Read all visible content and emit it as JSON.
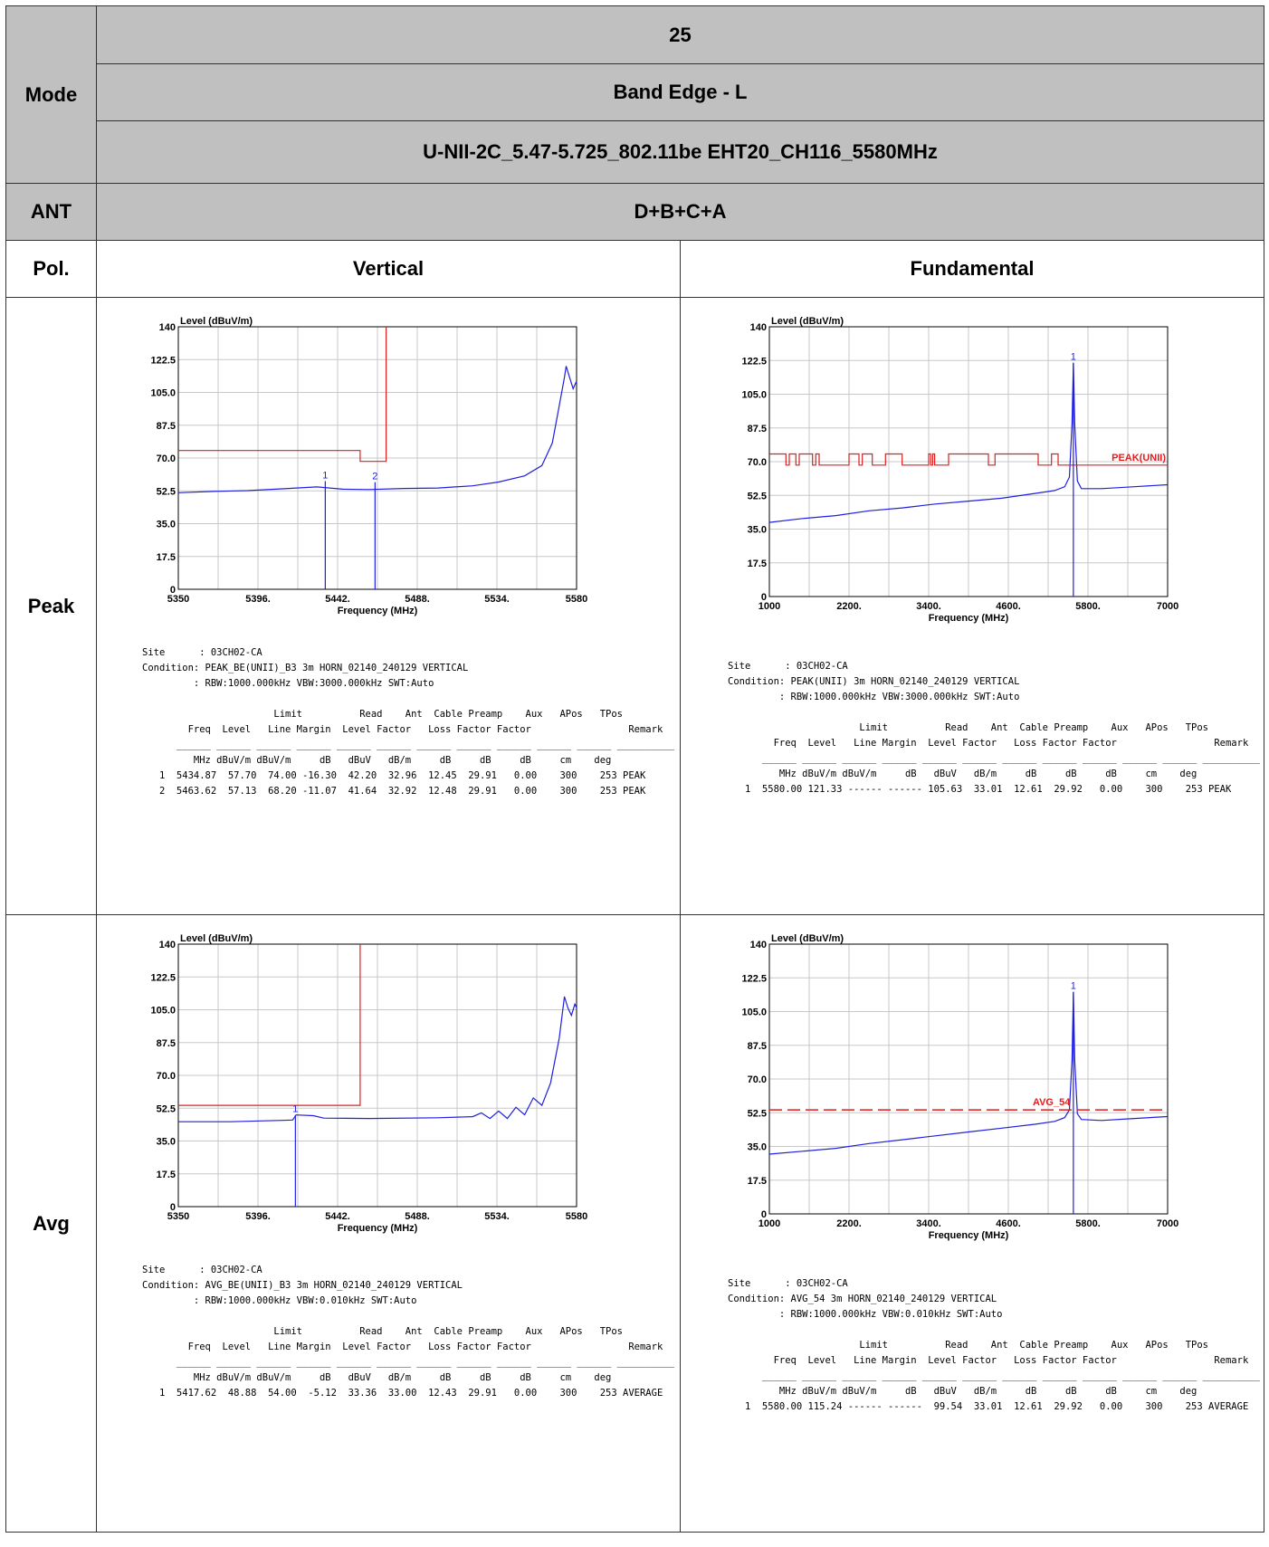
{
  "header": {
    "mode_label": "Mode",
    "row1": "25",
    "row2": "Band Edge - L",
    "row3": "U-NII-2C_5.47-5.725_802.11be EHT20_CH116_5580MHz",
    "ant_label": "ANT",
    "ant_value": "D+B+C+A",
    "pol_label": "Pol.",
    "col1": "Vertical",
    "col2": "Fundamental",
    "peak_label": "Peak",
    "avg_label": "Avg"
  },
  "colors": {
    "trace": "#1f1fe0",
    "limit": "#e01f1f",
    "grid": "#c8c8c8"
  },
  "chart_data": [
    {
      "id": "peak_band_edge",
      "type": "line",
      "ylabel": "Level (dBuV/m)",
      "xlabel": "Frequency (MHz)",
      "xlim": [
        5350,
        5580
      ],
      "ylim": [
        0,
        140
      ],
      "xticks": [
        "5350",
        "5396.",
        "5442.",
        "5488.",
        "5534.",
        "5580"
      ],
      "yticks": [
        "0",
        "17.5",
        "35.0",
        "52.5",
        "70.0",
        "87.5",
        "105.0",
        "122.5",
        "140"
      ],
      "series": [
        {
          "kind": "trace",
          "points": [
            [
              5350,
              51.5
            ],
            [
              5370,
              52.2
            ],
            [
              5390,
              52.6
            ],
            [
              5410,
              53.6
            ],
            [
              5430,
              54.6
            ],
            [
              5445,
              53.4
            ],
            [
              5460,
              53.2
            ],
            [
              5480,
              53.8
            ],
            [
              5500,
              54.0
            ],
            [
              5520,
              55.2
            ],
            [
              5535,
              57.2
            ],
            [
              5550,
              60.5
            ],
            [
              5560,
              66.0
            ],
            [
              5566,
              78.0
            ],
            [
              5570,
              98.0
            ],
            [
              5573,
              113.0
            ],
            [
              5574,
              119.0
            ],
            [
              5576,
              113.0
            ],
            [
              5578,
              107.0
            ],
            [
              5580,
              111.0
            ]
          ]
        },
        {
          "kind": "limit",
          "points": [
            [
              5350,
              74
            ],
            [
              5455,
              74
            ],
            [
              5455,
              68.2
            ],
            [
              5470,
              68.2
            ],
            [
              5470,
              140
            ]
          ]
        }
      ],
      "markers": [
        {
          "label": "1",
          "x": 5434.87,
          "y": 57.7
        },
        {
          "label": "2",
          "x": 5463.62,
          "y": 57.13
        }
      ],
      "info": {
        "site": "Site      : 03CH02-CA",
        "condition": "Condition: PEAK_BE(UNII)_B3 3m HORN_02140_240129 VERTICAL",
        "rbw": "         : RBW:1000.000kHz VBW:3000.000kHz SWT:Auto",
        "hdr1": "                       Limit          Read    Ant  Cable Preamp    Aux   APos   TPos",
        "hdr2": "        Freq  Level   Line Margin  Level Factor   Loss Factor Factor                 Remark",
        "sep": "      ______ ______ ______ ______ ______ ______ ______ ______ ______ ______ ______ __________",
        "units": "         MHz dBuV/m dBuV/m     dB   dBuV   dB/m     dB     dB     dB     cm    deg",
        "rows": [
          "   1  5434.87  57.70  74.00 -16.30  42.20  32.96  12.45  29.91   0.00    300    253 PEAK",
          "   2  5463.62  57.13  68.20 -11.07  41.64  32.92  12.48  29.91   0.00    300    253 PEAK"
        ]
      }
    },
    {
      "id": "peak_fundamental",
      "type": "line",
      "ylabel": "Level (dBuV/m)",
      "xlabel": "Frequency (MHz)",
      "xlim": [
        1000,
        7000
      ],
      "ylim": [
        0,
        140
      ],
      "xticks": [
        "1000",
        "2200.",
        "3400.",
        "4600.",
        "5800.",
        "7000"
      ],
      "yticks": [
        "0",
        "17.5",
        "35.0",
        "52.5",
        "70.0",
        "87.5",
        "105.0",
        "122.5",
        "140"
      ],
      "limit_label": "PEAK(UNII)",
      "series": [
        {
          "kind": "trace",
          "points": [
            [
              1000,
              38.5
            ],
            [
              1500,
              40.5
            ],
            [
              2000,
              42.0
            ],
            [
              2500,
              44.5
            ],
            [
              3000,
              46.0
            ],
            [
              3500,
              48.0
            ],
            [
              4000,
              49.5
            ],
            [
              4500,
              51.0
            ],
            [
              5000,
              53.5
            ],
            [
              5300,
              55.0
            ],
            [
              5450,
              57.0
            ],
            [
              5520,
              62.0
            ],
            [
              5560,
              90.0
            ],
            [
              5580,
              121.3
            ],
            [
              5600,
              90.0
            ],
            [
              5640,
              60.0
            ],
            [
              5700,
              56.0
            ],
            [
              6000,
              56.0
            ],
            [
              6500,
              57.0
            ],
            [
              7000,
              58.0
            ]
          ]
        },
        {
          "kind": "limit",
          "points": [
            [
              1000,
              74
            ],
            [
              1250,
              74
            ],
            [
              1250,
              68.2
            ],
            [
              1300,
              68.2
            ],
            [
              1300,
              74
            ],
            [
              1400,
              74
            ],
            [
              1400,
              68.2
            ],
            [
              1450,
              68.2
            ],
            [
              1450,
              74
            ],
            [
              1650,
              74
            ],
            [
              1650,
              68.2
            ],
            [
              1700,
              68.2
            ],
            [
              1700,
              74
            ],
            [
              1750,
              74
            ],
            [
              1750,
              68.2
            ],
            [
              2200,
              68.2
            ],
            [
              2200,
              74
            ],
            [
              2350,
              74
            ],
            [
              2350,
              68.2
            ],
            [
              2400,
              68.2
            ],
            [
              2400,
              74
            ],
            [
              2550,
              74
            ],
            [
              2550,
              68.2
            ],
            [
              2750,
              68.2
            ],
            [
              2750,
              74
            ],
            [
              3000,
              74
            ],
            [
              3000,
              68.2
            ],
            [
              3400,
              68.2
            ],
            [
              3400,
              74
            ],
            [
              3430,
              74
            ],
            [
              3430,
              68.2
            ],
            [
              3460,
              68.2
            ],
            [
              3460,
              74
            ],
            [
              3490,
              74
            ],
            [
              3490,
              68.2
            ],
            [
              3700,
              68.2
            ],
            [
              3700,
              74
            ],
            [
              4300,
              74
            ],
            [
              4300,
              68.2
            ],
            [
              4400,
              68.2
            ],
            [
              4400,
              74
            ],
            [
              5050,
              74
            ],
            [
              5050,
              68.2
            ],
            [
              5250,
              68.2
            ],
            [
              5250,
              74
            ],
            [
              5350,
              74
            ],
            [
              5350,
              68.2
            ],
            [
              7000,
              68.2
            ]
          ]
        }
      ],
      "markers": [
        {
          "label": "1",
          "x": 5580.0,
          "y": 121.33
        }
      ],
      "info": {
        "site": "Site      : 03CH02-CA",
        "condition": "Condition: PEAK(UNII) 3m HORN_02140_240129 VERTICAL",
        "rbw": "         : RBW:1000.000kHz VBW:3000.000kHz SWT:Auto",
        "hdr1": "                       Limit          Read    Ant  Cable Preamp    Aux   APos   TPos",
        "hdr2": "        Freq  Level   Line Margin  Level Factor   Loss Factor Factor                 Remark",
        "sep": "      ______ ______ ______ ______ ______ ______ ______ ______ ______ ______ ______ __________",
        "units": "         MHz dBuV/m dBuV/m     dB   dBuV   dB/m     dB     dB     dB     cm    deg",
        "rows": [
          "   1  5580.00 121.33 ------ ------ 105.63  33.01  12.61  29.92   0.00    300    253 PEAK"
        ]
      }
    },
    {
      "id": "avg_band_edge",
      "type": "line",
      "ylabel": "Level (dBuV/m)",
      "xlabel": "Frequency (MHz)",
      "xlim": [
        5350,
        5580
      ],
      "ylim": [
        0,
        140
      ],
      "xticks": [
        "5350",
        "5396.",
        "5442.",
        "5488.",
        "5534.",
        "5580"
      ],
      "yticks": [
        "0",
        "17.5",
        "35.0",
        "52.5",
        "70.0",
        "87.5",
        "105.0",
        "122.5",
        "140"
      ],
      "series": [
        {
          "kind": "trace",
          "points": [
            [
              5350,
              45.3
            ],
            [
              5380,
              45.3
            ],
            [
              5410,
              46.0
            ],
            [
              5416,
              46.2
            ],
            [
              5418,
              48.9
            ],
            [
              5428,
              48.5
            ],
            [
              5434,
              47.2
            ],
            [
              5460,
              47.0
            ],
            [
              5500,
              47.4
            ],
            [
              5520,
              48.0
            ],
            [
              5525,
              50.0
            ],
            [
              5530,
              47.0
            ],
            [
              5535,
              51.0
            ],
            [
              5540,
              47.0
            ],
            [
              5545,
              53.0
            ],
            [
              5550,
              49.0
            ],
            [
              5555,
              58.0
            ],
            [
              5560,
              54.0
            ],
            [
              5565,
              66.0
            ],
            [
              5570,
              90.0
            ],
            [
              5573,
              112.0
            ],
            [
              5575,
              106.0
            ],
            [
              5577,
              102.0
            ],
            [
              5579,
              108.0
            ],
            [
              5580,
              106.0
            ]
          ]
        },
        {
          "kind": "limit",
          "points": [
            [
              5350,
              54
            ],
            [
              5455,
              54
            ],
            [
              5455,
              140
            ]
          ]
        }
      ],
      "markers": [
        {
          "label": "1",
          "x": 5417.62,
          "y": 48.88
        }
      ],
      "info": {
        "site": "Site      : 03CH02-CA",
        "condition": "Condition: AVG_BE(UNII)_B3 3m HORN_02140_240129 VERTICAL",
        "rbw": "         : RBW:1000.000kHz VBW:0.010kHz SWT:Auto",
        "hdr1": "                       Limit          Read    Ant  Cable Preamp    Aux   APos   TPos",
        "hdr2": "        Freq  Level   Line Margin  Level Factor   Loss Factor Factor                 Remark",
        "sep": "      ______ ______ ______ ______ ______ ______ ______ ______ ______ ______ ______ __________",
        "units": "         MHz dBuV/m dBuV/m     dB   dBuV   dB/m     dB     dB     dB     cm    deg",
        "rows": [
          "   1  5417.62  48.88  54.00  -5.12  33.36  33.00  12.43  29.91   0.00    300    253 AVERAGE"
        ]
      }
    },
    {
      "id": "avg_fundamental",
      "type": "line",
      "ylabel": "Level (dBuV/m)",
      "xlabel": "Frequency (MHz)",
      "xlim": [
        1000,
        7000
      ],
      "ylim": [
        0,
        140
      ],
      "xticks": [
        "1000",
        "2200.",
        "3400.",
        "4600.",
        "5800.",
        "7000"
      ],
      "yticks": [
        "0",
        "17.5",
        "35.0",
        "52.5",
        "70.0",
        "87.5",
        "105.0",
        "122.5",
        "140"
      ],
      "limit_label": "AVG_54",
      "series": [
        {
          "kind": "trace",
          "points": [
            [
              1000,
              31.0
            ],
            [
              1500,
              32.5
            ],
            [
              2000,
              34.0
            ],
            [
              2500,
              36.5
            ],
            [
              3000,
              38.5
            ],
            [
              3500,
              40.5
            ],
            [
              4000,
              42.5
            ],
            [
              4500,
              44.5
            ],
            [
              5000,
              46.5
            ],
            [
              5300,
              48.0
            ],
            [
              5450,
              50.0
            ],
            [
              5520,
              54.0
            ],
            [
              5560,
              80.0
            ],
            [
              5580,
              115.2
            ],
            [
              5600,
              80.0
            ],
            [
              5640,
              52.0
            ],
            [
              5700,
              49.0
            ],
            [
              6000,
              48.5
            ],
            [
              6500,
              49.5
            ],
            [
              7000,
              50.5
            ]
          ]
        },
        {
          "kind": "limit_dashed",
          "points": [
            [
              1000,
              54
            ],
            [
              7000,
              54
            ]
          ]
        }
      ],
      "markers": [
        {
          "label": "1",
          "x": 5580.0,
          "y": 115.24
        }
      ],
      "info": {
        "site": "Site      : 03CH02-CA",
        "condition": "Condition: AVG_54 3m HORN_02140_240129 VERTICAL",
        "rbw": "         : RBW:1000.000kHz VBW:0.010kHz SWT:Auto",
        "hdr1": "                       Limit          Read    Ant  Cable Preamp    Aux   APos   TPos",
        "hdr2": "        Freq  Level   Line Margin  Level Factor   Loss Factor Factor                 Remark",
        "sep": "      ______ ______ ______ ______ ______ ______ ______ ______ ______ ______ ______ __________",
        "units": "         MHz dBuV/m dBuV/m     dB   dBuV   dB/m     dB     dB     dB     cm    deg",
        "rows": [
          "   1  5580.00 115.24 ------ ------  99.54  33.01  12.61  29.92   0.00    300    253 AVERAGE"
        ]
      }
    }
  ]
}
